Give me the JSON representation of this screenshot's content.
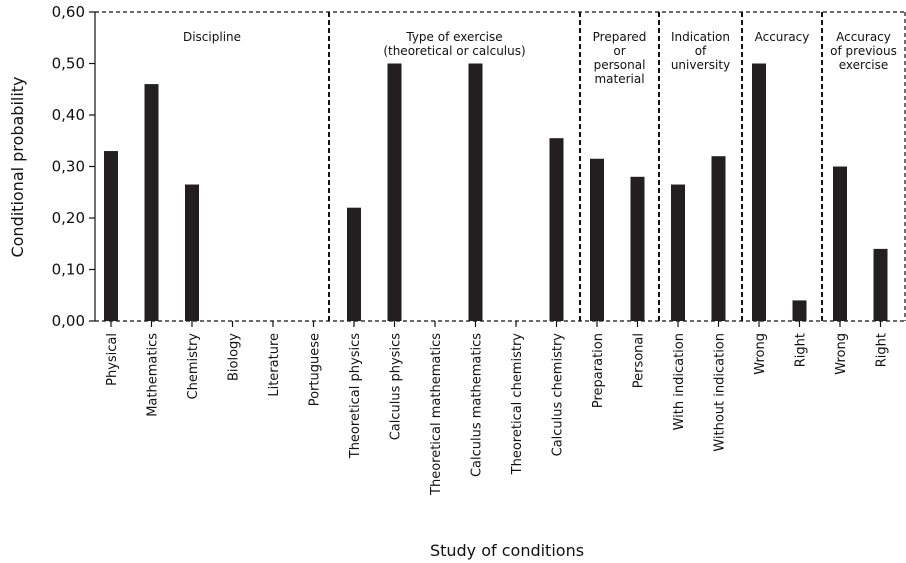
{
  "chart_data": {
    "type": "bar",
    "xlabel": "Study of conditions",
    "ylabel": "Conditional probability",
    "ylim": [
      0,
      0.6
    ],
    "yticks": [
      "0,00",
      "0,10",
      "0,20",
      "0,30",
      "0,40",
      "0,50",
      "0,60"
    ],
    "yticks_values": [
      0,
      0.1,
      0.2,
      0.3,
      0.4,
      0.5,
      0.6
    ],
    "bar_color": "#231f20",
    "groups": [
      {
        "label": [
          "Discipline"
        ],
        "categories": [
          "Physical",
          "Mathematics",
          "Chemistry",
          "Biology",
          "Literature",
          "Portuguese"
        ],
        "values": [
          0.33,
          0.46,
          0.265,
          0,
          0,
          0
        ]
      },
      {
        "label": [
          "Type of exercise",
          "(theoretical or calculus)"
        ],
        "categories": [
          "Theoretical physics",
          "Calculus physics",
          "Theoretical mathematics",
          "Calculus mathematics",
          "Theoretical chemistry",
          "Calculus chemistry"
        ],
        "values": [
          0.22,
          0.5,
          0,
          0.5,
          0,
          0.355
        ]
      },
      {
        "label": [
          "Prepared",
          "or",
          "personal",
          "material"
        ],
        "categories": [
          "Preparation",
          "Personal"
        ],
        "values": [
          0.315,
          0.28
        ]
      },
      {
        "label": [
          "Indication",
          "of",
          "university"
        ],
        "categories": [
          "With indication",
          "Without indication"
        ],
        "values": [
          0.265,
          0.32
        ]
      },
      {
        "label": [
          "Accuracy"
        ],
        "categories": [
          "Wrong",
          "Right"
        ],
        "values": [
          0.5,
          0.04
        ]
      },
      {
        "label": [
          "Accuracy",
          "of previous",
          "exercise"
        ],
        "categories": [
          "Wrong",
          "Right"
        ],
        "values": [
          0.3,
          0.14
        ]
      }
    ]
  }
}
